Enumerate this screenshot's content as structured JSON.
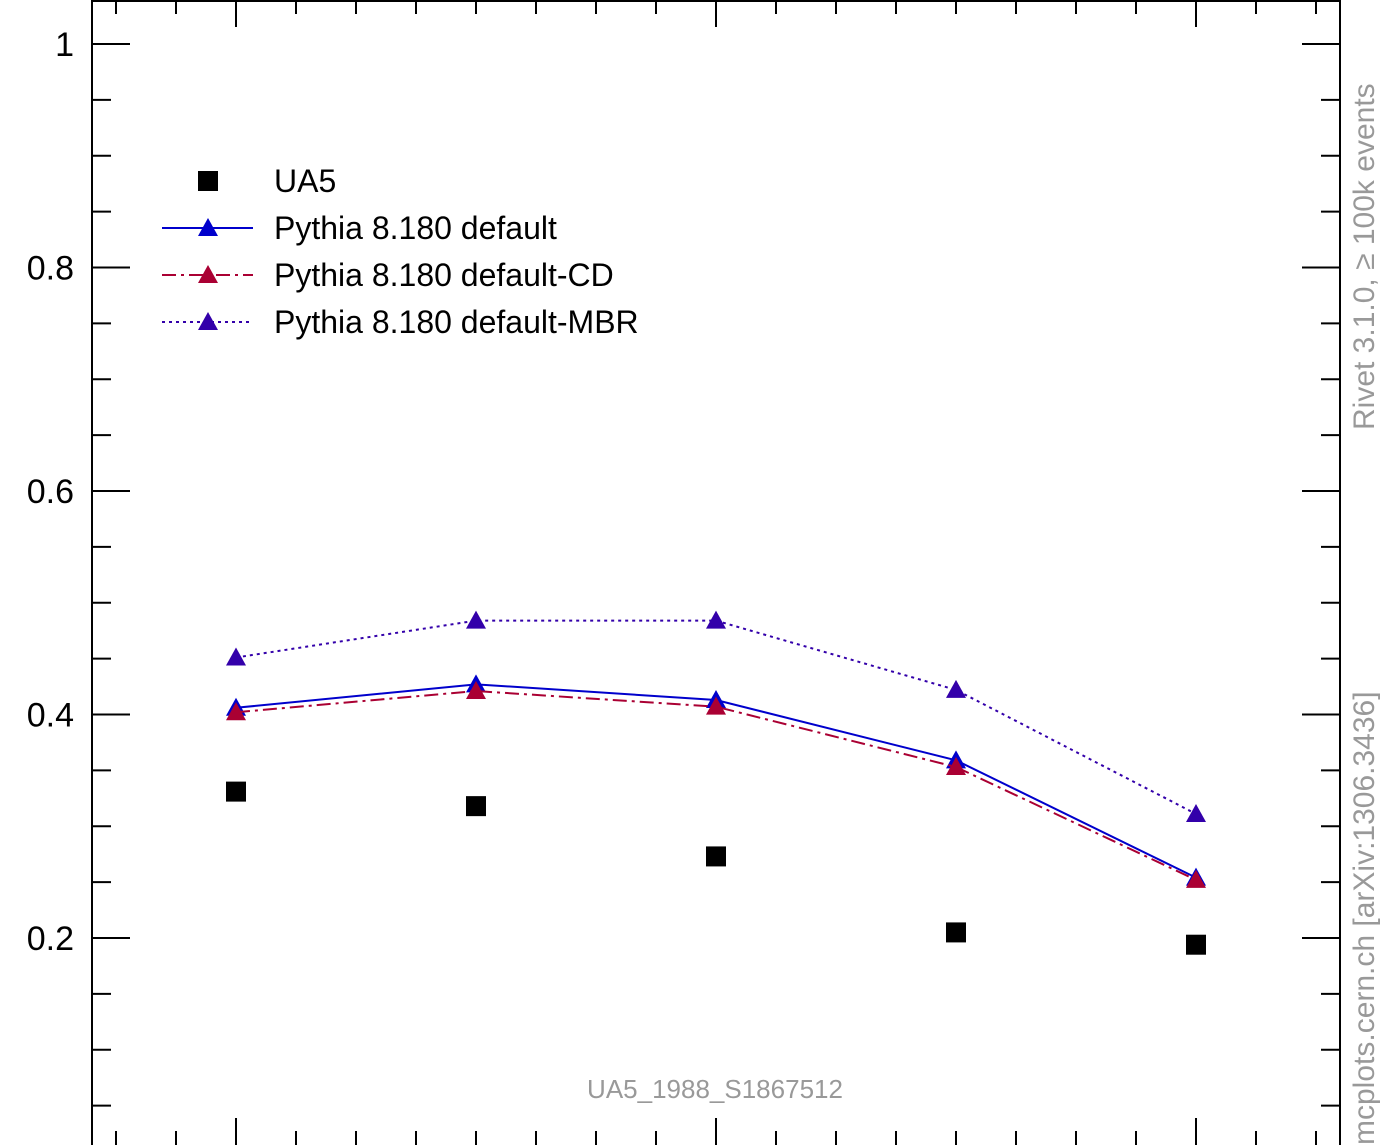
{
  "chart_data": {
    "type": "line",
    "title": "",
    "xlabel": "",
    "ylabel": "",
    "x": [
      1,
      2,
      3,
      4,
      5
    ],
    "xlim": [
      0.4,
      5.6
    ],
    "ylim": [
      0,
      1.02
    ],
    "y_ticks": [
      0.2,
      0.4,
      0.6,
      0.8,
      1
    ],
    "y_tick_labels": [
      "0.2",
      "0.4",
      "0.6",
      "0.8",
      "1"
    ],
    "series": [
      {
        "name": "UA5",
        "values": [
          0.331,
          0.318,
          0.273,
          0.205,
          0.194
        ],
        "color": "#000000",
        "marker": "square",
        "line": "none"
      },
      {
        "name": "Pythia 8.180 default",
        "values": [
          0.406,
          0.427,
          0.413,
          0.359,
          0.254
        ],
        "color": "#0000cc",
        "marker": "triangle",
        "line": "solid"
      },
      {
        "name": "Pythia 8.180 default-CD",
        "values": [
          0.402,
          0.421,
          0.407,
          0.353,
          0.252
        ],
        "color": "#aa0033",
        "marker": "triangle",
        "line": "dashdot"
      },
      {
        "name": "Pythia 8.180 default-MBR",
        "values": [
          0.451,
          0.484,
          0.484,
          0.422,
          0.311
        ],
        "color": "#3300aa",
        "marker": "triangle",
        "line": "dotted"
      }
    ],
    "legend_position": "top-left",
    "grid": false,
    "annotations": {
      "analysis_id": "UA5_1988_S1867512",
      "side_label_top": "Rivet 3.1.0, ≥ 100k events",
      "side_label_bottom": "mcplots.cern.ch [arXiv:1306.3436]"
    }
  }
}
